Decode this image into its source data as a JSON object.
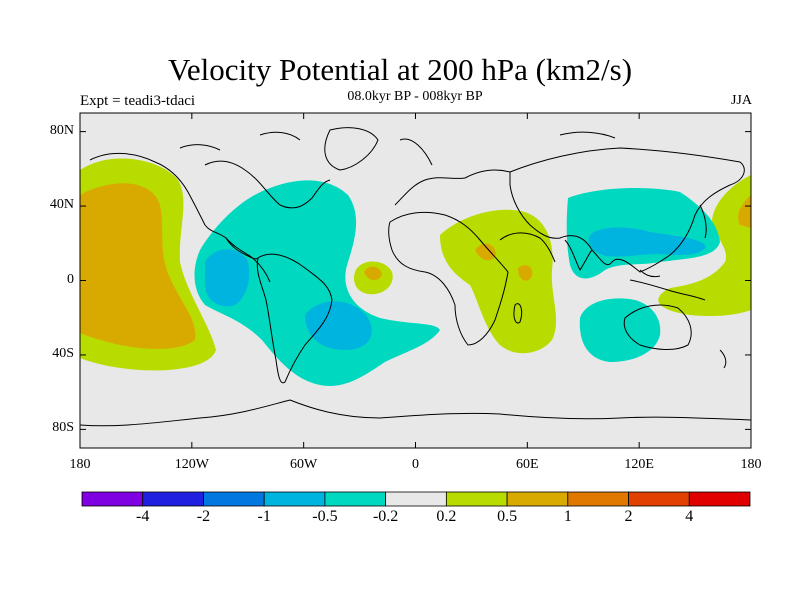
{
  "header": {
    "title": "Velocity Potential at 200 hPa (km2/s)",
    "subtitle": "08.0kyr BP - 008kyr BP",
    "experiment": "Expt = teadi3-tdaci",
    "season": "JJA"
  },
  "map": {
    "projection": "cylindrical-equidistant",
    "lon_range": [
      -180,
      180
    ],
    "lat_range": [
      -90,
      90
    ],
    "lat_tick_labels": [
      "80N",
      "40N",
      "0",
      "40S",
      "80S"
    ],
    "lat_tick_values": [
      80,
      40,
      0,
      -40,
      -80
    ],
    "lon_tick_labels": [
      "180",
      "120W",
      "60W",
      "0",
      "60E",
      "120E",
      "180"
    ],
    "lon_tick_values": [
      -180,
      -120,
      -60,
      0,
      60,
      120,
      180
    ],
    "colors": {
      "background": "#e8e8e8",
      "neg_02_05": "#00d8c0",
      "neg_05_1": "#00b4e0",
      "pos_02_05": "#b8dc00",
      "pos_05_1": "#d8aa00",
      "pos_1_2": "#e07800",
      "coastline": "#000000"
    }
  },
  "colorbar": {
    "labels": [
      "-4",
      "-2",
      "-1",
      "-0.5",
      "-0.2",
      "0.2",
      "0.5",
      "1",
      "2",
      "4"
    ],
    "colors": [
      "#7f00e0",
      "#2020e0",
      "#0078e0",
      "#00b4e0",
      "#00d8c0",
      "#e8e8e8",
      "#b8dc00",
      "#d8aa00",
      "#e07800",
      "#e04000",
      "#e00000"
    ]
  }
}
